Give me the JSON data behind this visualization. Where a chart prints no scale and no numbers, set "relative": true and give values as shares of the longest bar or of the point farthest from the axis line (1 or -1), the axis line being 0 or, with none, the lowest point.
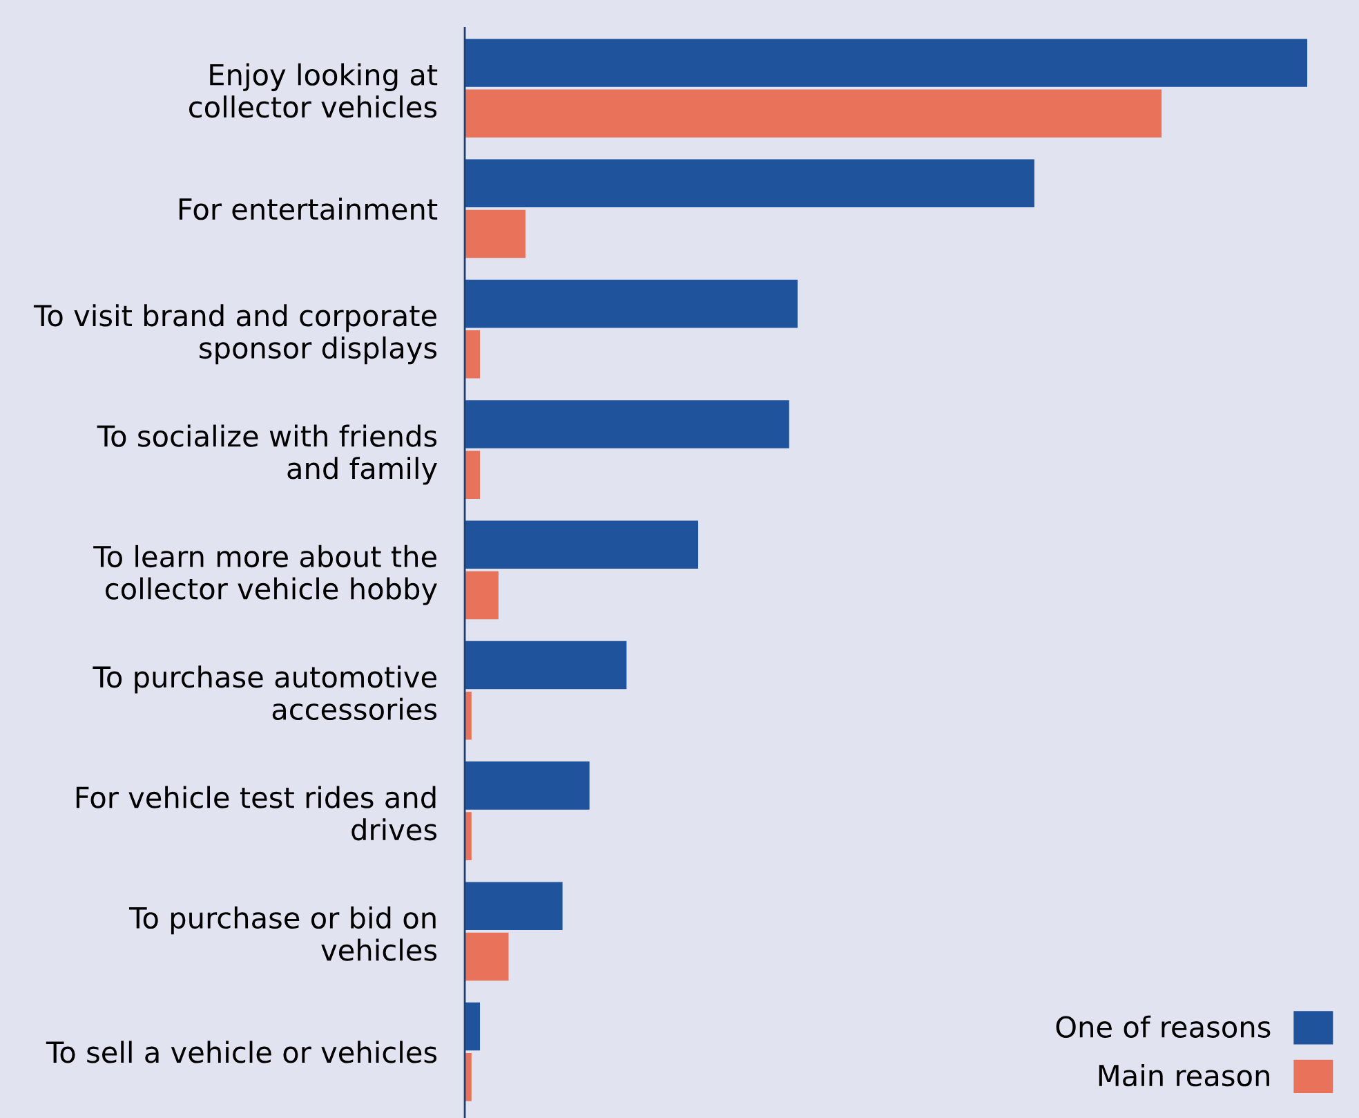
{
  "chart_data": {
    "type": "bar",
    "orientation": "horizontal",
    "relative": true,
    "categories": [
      "Enjoy looking at\ncollector vehicles",
      "For entertainment",
      "To visit brand and corporate\nsponsor displays",
      "To socialize with friends\nand family",
      "To learn more about the\ncollector vehicle hobby",
      "To purchase automotive\naccessories",
      "For vehicle test rides and\ndrives",
      "To purchase or bid on\nvehicles",
      "To sell a vehicle or vehicles"
    ],
    "series": [
      {
        "name": "One of reasons",
        "color": "#1f539c",
        "values": [
          1.0,
          0.676,
          0.395,
          0.385,
          0.277,
          0.192,
          0.148,
          0.116,
          0.018
        ]
      },
      {
        "name": "Main reason",
        "color": "#e8735a",
        "values": [
          0.827,
          0.072,
          0.018,
          0.018,
          0.04,
          0.008,
          0.008,
          0.052,
          0.008
        ]
      }
    ],
    "legend": "bottom right",
    "grid": false
  }
}
